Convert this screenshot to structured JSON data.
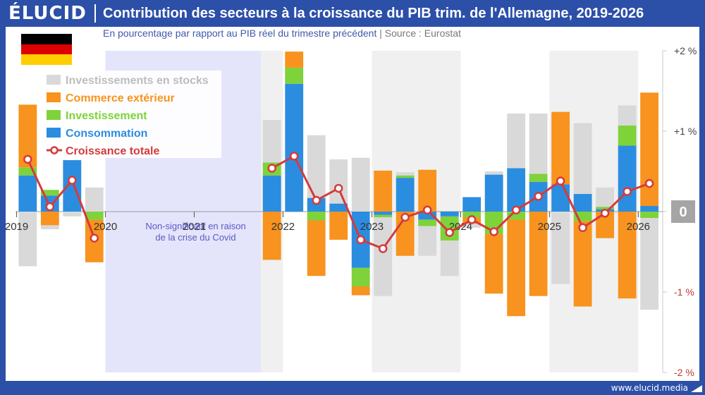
{
  "header": {
    "logo": "ÉLUCID",
    "title": "Contribution des secteurs à la croissance du PIB trim. de l'Allemagne, 2019-2026",
    "subtitle": "En pourcentage par rapport au PIB réel du trimestre précédent",
    "subtitle_sep": "|",
    "source": "Source : Eurostat"
  },
  "flag_colors": [
    "#000000",
    "#dd0000",
    "#ffce00"
  ],
  "footer": {
    "url": "www.elucid.media"
  },
  "colors": {
    "stocks": "#d9d9d9",
    "commerce": "#f7931e",
    "investissement": "#7ed23a",
    "consommation": "#2b8de0",
    "total": "#d43b3b",
    "covid_band": "#e4e4fb",
    "shade_band": "#f0f0f0",
    "zero_badge": "#a5a5a5"
  },
  "chart_data": {
    "type": "bar",
    "stacked": true,
    "ylim": [
      -2,
      2
    ],
    "y_ticks": [
      {
        "value": 2,
        "label": "+2 %"
      },
      {
        "value": 1,
        "label": "+1 %"
      },
      {
        "value": 0,
        "label": "0"
      },
      {
        "value": -1,
        "label": "-1 %"
      },
      {
        "value": -2,
        "label": "-2 %"
      }
    ],
    "year_labels": [
      "2019",
      "2020",
      "2021",
      "2022",
      "2023",
      "2024",
      "2025",
      "2026"
    ],
    "annotation": "Non-significatif en raison\nde la crise du Covid",
    "x": [
      "2019-T1",
      "2019-T2",
      "2019-T3",
      "2019-T4",
      "2020-T1",
      "2020-T2",
      "2020-T3",
      "2020-T4",
      "2021-T1",
      "2021-T2",
      "2021-T3",
      "2021-T4",
      "2022-T1",
      "2022-T2",
      "2022-T3",
      "2022-T4",
      "2023-T1",
      "2023-T2",
      "2023-T3",
      "2023-T4",
      "2024-T1",
      "2024-T2",
      "2024-T3",
      "2024-T4",
      "2025-T1",
      "2025-T2",
      "2025-T3",
      "2025-T4",
      "2026-T1"
    ],
    "covid_gap": [
      "2020-T1",
      "2020-T2",
      "2020-T3",
      "2020-T4",
      "2021-T1",
      "2021-T2",
      "2021-T3",
      "2021-T4"
    ],
    "series": [
      {
        "name": "Consommation",
        "key": "consommation",
        "values": [
          0.45,
          0.2,
          0.64,
          0,
          null,
          null,
          null,
          null,
          null,
          null,
          null,
          0.45,
          1.59,
          0.17,
          0.1,
          -0.7,
          -0.04,
          0.42,
          -0.1,
          -0.06,
          0.18,
          0.46,
          0.54,
          0.37,
          0.34,
          0.22,
          0.03,
          0.82,
          0.07
        ]
      },
      {
        "name": "Investissement",
        "key": "investissement",
        "values": [
          0.1,
          0.07,
          0,
          -0.1,
          null,
          null,
          null,
          null,
          null,
          null,
          null,
          0.16,
          0.2,
          -0.11,
          0.0,
          -0.23,
          -0.03,
          0.03,
          -0.08,
          -0.3,
          -0.07,
          -0.28,
          -0.1,
          0.1,
          0.0,
          -0.12,
          0.03,
          0.25,
          -0.08
        ]
      },
      {
        "name": "Commerce extérieur",
        "key": "commerce",
        "values": [
          0.78,
          -0.17,
          0,
          -0.53,
          null,
          null,
          null,
          null,
          null,
          null,
          null,
          -0.6,
          0.2,
          -0.69,
          -0.35,
          -0.11,
          0.51,
          -0.55,
          0.52,
          0.0,
          -0.08,
          -0.74,
          -1.2,
          -1.05,
          0.9,
          -1.06,
          -0.33,
          -1.08,
          1.41
        ]
      },
      {
        "name": "Investissements en stocks",
        "key": "stocks",
        "values": [
          -0.68,
          -0.05,
          -0.06,
          0.3,
          null,
          null,
          null,
          null,
          null,
          null,
          null,
          0.53,
          0.0,
          0.78,
          0.55,
          0.67,
          -0.98,
          0.04,
          -0.37,
          -0.44,
          -0.05,
          0.04,
          0.68,
          0.75,
          -0.9,
          0.88,
          0.24,
          0.25,
          -1.14
        ]
      },
      {
        "name": "Croissance totale",
        "key": "total",
        "kind": "line",
        "values": [
          0.65,
          0.06,
          0.39,
          -0.33,
          null,
          null,
          null,
          null,
          null,
          null,
          null,
          0.54,
          0.69,
          0.14,
          0.29,
          -0.35,
          -0.46,
          -0.07,
          0.02,
          -0.26,
          -0.1,
          -0.25,
          0.02,
          0.19,
          0.38,
          -0.2,
          -0.02,
          0.25,
          0.35
        ]
      }
    ]
  }
}
